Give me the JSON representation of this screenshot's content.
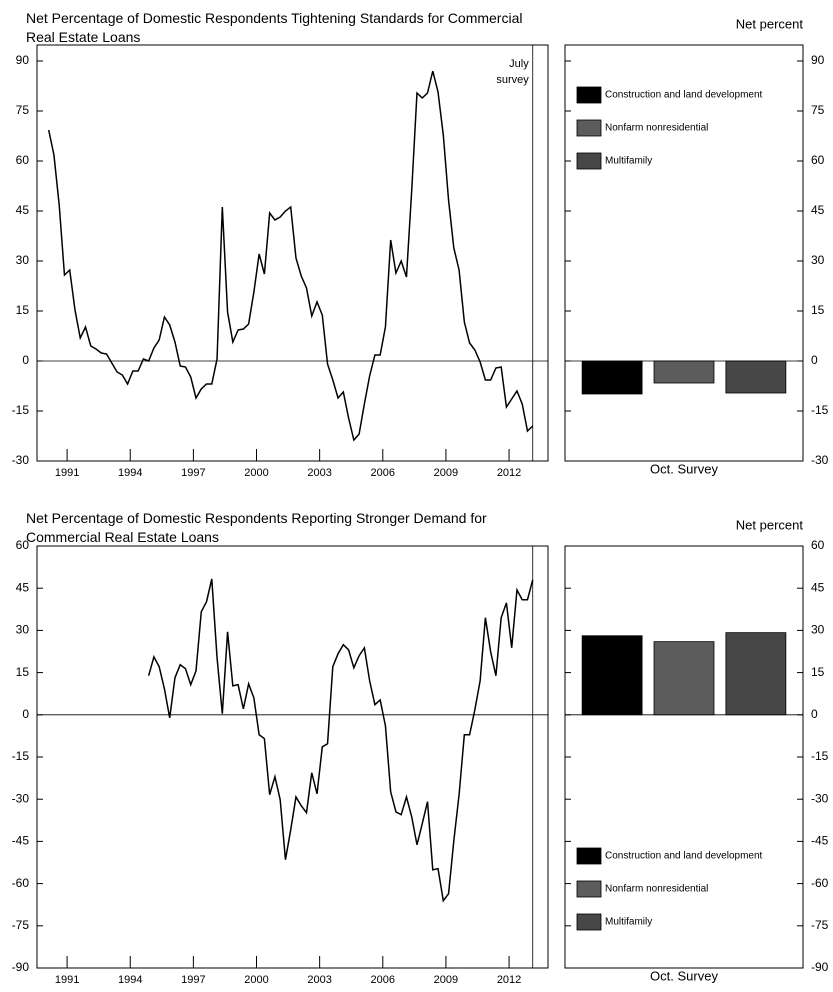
{
  "chart_data": [
    {
      "type": "line",
      "title": "Net Percentage of Domestic Respondents Tightening Standards for Commercial Real Estate Loans",
      "annotation": "July survey",
      "vline": 2013.125,
      "color": "#000000",
      "x": [
        1990.125,
        1990.375,
        1990.625,
        1990.875,
        1991.125,
        1991.375,
        1991.625,
        1991.875,
        1992.125,
        1992.375,
        1992.625,
        1992.875,
        1993.125,
        1993.375,
        1993.625,
        1993.875,
        1994.125,
        1994.375,
        1994.625,
        1994.875,
        1995.125,
        1995.375,
        1995.625,
        1995.875,
        1996.125,
        1996.375,
        1996.625,
        1996.875,
        1997.125,
        1997.375,
        1997.625,
        1997.875,
        1998.125,
        1998.375,
        1998.625,
        1998.875,
        1999.125,
        1999.375,
        1999.625,
        1999.875,
        2000.125,
        2000.375,
        2000.625,
        2000.875,
        2001.125,
        2001.375,
        2001.625,
        2001.875,
        2002.125,
        2002.375,
        2002.625,
        2002.875,
        2003.125,
        2003.375,
        2003.625,
        2003.875,
        2004.125,
        2004.375,
        2004.625,
        2004.875,
        2005.125,
        2005.375,
        2005.625,
        2005.875,
        2006.125,
        2006.375,
        2006.625,
        2006.875,
        2007.125,
        2007.375,
        2007.625,
        2007.875,
        2008.125,
        2008.375,
        2008.625,
        2008.875,
        2009.125,
        2009.375,
        2009.625,
        2009.875,
        2010.125,
        2010.375,
        2010.625,
        2010.875,
        2011.125,
        2011.375,
        2011.625,
        2011.875,
        2012.125,
        2012.375,
        2012.625,
        2012.875,
        2013.125
      ],
      "values": [
        69.3,
        61.8,
        46.8,
        25.8,
        27.3,
        15.3,
        6.9,
        10.2,
        4.5,
        3.6,
        2.4,
        2.1,
        -0.6,
        -3.3,
        -4.2,
        -6.9,
        -3,
        -3,
        0.6,
        0,
        3.9,
        6.3,
        13.2,
        10.8,
        5.7,
        -1.5,
        -1.8,
        -4.8,
        -11.1,
        -8.4,
        -6.9,
        -6.9,
        0.6,
        46.2,
        14.7,
        5.7,
        9.3,
        9.6,
        11.1,
        20.7,
        32.1,
        26.1,
        44.4,
        42.3,
        43.2,
        45,
        46.2,
        30.9,
        25.5,
        21.9,
        13.5,
        17.7,
        13.8,
        -0.9,
        -5.7,
        -11.1,
        -9.3,
        -17.1,
        -23.7,
        -21.9,
        -12.9,
        -4.5,
        1.8,
        1.8,
        10.2,
        36.3,
        26.4,
        30,
        25.2,
        51.3,
        80.4,
        78.9,
        80.4,
        87,
        80.7,
        67.8,
        48.3,
        33.9,
        27.3,
        11.7,
        5.4,
        3.3,
        -0.3,
        -5.7,
        -5.7,
        -2.1,
        -1.8,
        -13.8,
        -11.4,
        -9,
        -12.9,
        -21,
        -19.5
      ],
      "xlim": [
        1989.57,
        2013.85
      ],
      "xticks": [
        1991,
        1994,
        1997,
        2000,
        2003,
        2006,
        2009,
        2012
      ],
      "ylim": [
        -30,
        90
      ],
      "yticks": [
        -30,
        -15,
        0,
        15,
        30,
        45,
        60,
        75,
        90
      ]
    },
    {
      "type": "bar",
      "ylabel": "Net percent",
      "categories": [
        "Oct. Survey"
      ],
      "legend": "upper left",
      "series": [
        {
          "name": "Construction and land development",
          "color": "#000000",
          "values": [
            -9.9
          ]
        },
        {
          "name": "Nonfarm nonresidential",
          "color": "#5c5c5c",
          "values": [
            -6.6
          ]
        },
        {
          "name": "Multifamily",
          "color": "#474747",
          "values": [
            -9.6
          ]
        }
      ],
      "ylim": [
        -30,
        90
      ],
      "yticks": [
        -30,
        -15,
        0,
        15,
        30,
        45,
        60,
        75,
        90
      ]
    },
    {
      "type": "line",
      "title": "Net Percentage of Domestic Respondents Reporting Stronger Demand for Commercial Real Estate Loans",
      "vline": 2013.125,
      "color": "#000000",
      "x": [
        1994.875,
        1995.125,
        1995.375,
        1995.625,
        1995.875,
        1996.125,
        1996.375,
        1996.625,
        1996.875,
        1997.125,
        1997.375,
        1997.625,
        1997.875,
        1998.125,
        1998.375,
        1998.625,
        1998.875,
        1999.125,
        1999.375,
        1999.625,
        1999.875,
        2000.125,
        2000.375,
        2000.625,
        2000.875,
        2001.125,
        2001.375,
        2001.625,
        2001.875,
        2002.125,
        2002.375,
        2002.625,
        2002.875,
        2003.125,
        2003.375,
        2003.625,
        2003.875,
        2004.125,
        2004.375,
        2004.625,
        2004.875,
        2005.125,
        2005.375,
        2005.625,
        2005.875,
        2006.125,
        2006.375,
        2006.625,
        2006.875,
        2007.125,
        2007.375,
        2007.625,
        2007.875,
        2008.125,
        2008.375,
        2008.625,
        2008.875,
        2009.125,
        2009.375,
        2009.625,
        2009.875,
        2010.125,
        2010.375,
        2010.625,
        2010.875,
        2011.125,
        2011.375,
        2011.625,
        2011.875,
        2012.125,
        2012.375,
        2012.625,
        2012.875,
        2013.125
      ],
      "values": [
        13.9,
        20.6,
        17.1,
        9.2,
        -1.1,
        13.2,
        17.8,
        16.4,
        10.7,
        15.6,
        36.6,
        40.2,
        48.3,
        20.3,
        0.4,
        29.5,
        10.3,
        10.7,
        2.1,
        11,
        6,
        -7.1,
        -8.5,
        -28.4,
        -22,
        -30.2,
        -51.5,
        -40.9,
        -29.2,
        -32.3,
        -34.8,
        -20.6,
        -28.1,
        -11.4,
        -10.3,
        17.1,
        21.7,
        24.9,
        23.1,
        16.7,
        21,
        23.8,
        12.1,
        3.6,
        5.3,
        -3.9,
        -27.4,
        -34.5,
        -35.5,
        -29.2,
        -36.3,
        -46.2,
        -38.7,
        -30.9,
        -55.1,
        -54.7,
        -66.1,
        -63.6,
        -44.8,
        -28.4,
        -7.1,
        -7.1,
        1.8,
        12.1,
        34.5,
        22.4,
        13.9,
        34.5,
        39.8,
        23.8,
        44.4,
        40.9,
        40.9,
        48
      ],
      "xlim": [
        1989.57,
        2013.85
      ],
      "xticks": [
        1991,
        1994,
        1997,
        2000,
        2003,
        2006,
        2009,
        2012
      ],
      "ylim": [
        -90,
        60
      ],
      "yticks": [
        -90,
        -75,
        -60,
        -45,
        -30,
        -15,
        0,
        15,
        30,
        45,
        60
      ]
    },
    {
      "type": "bar",
      "ylabel": "Net percent",
      "categories": [
        "Oct. Survey"
      ],
      "legend": "lower left",
      "series": [
        {
          "name": "Construction and land development",
          "color": "#000000",
          "values": [
            28.1
          ]
        },
        {
          "name": "Nonfarm nonresidential",
          "color": "#5c5c5c",
          "values": [
            26
          ]
        },
        {
          "name": "Multifamily",
          "color": "#474747",
          "values": [
            29.2
          ]
        }
      ],
      "ylim": [
        -90,
        60
      ],
      "yticks": [
        -90,
        -75,
        -60,
        -45,
        -30,
        -15,
        0,
        15,
        30,
        45,
        60
      ]
    }
  ]
}
